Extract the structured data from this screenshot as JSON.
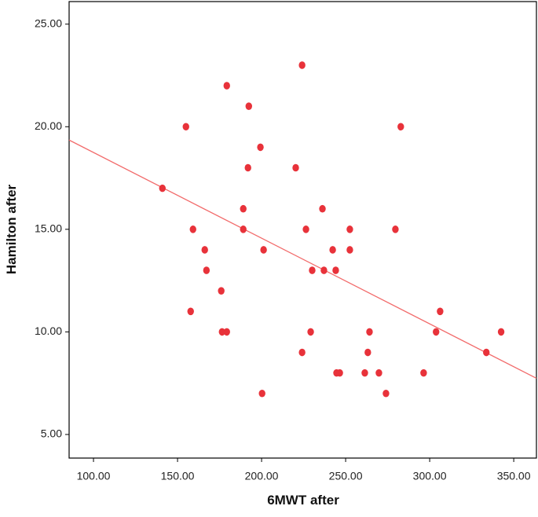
{
  "chart_data": {
    "type": "scatter",
    "x_label": "6MWT after",
    "y_label": "Hamilton after",
    "color": "#e8323a",
    "x": [
      141.0,
      155.0,
      179.3,
      192.4,
      224.1,
      282.8,
      199.3,
      191.9,
      220.3,
      189.1,
      236.2,
      159.2,
      189.1,
      226.4,
      252.5,
      279.6,
      166.2,
      201.2,
      242.3,
      252.5,
      167.2,
      230.1,
      237.1,
      244.1,
      176.0,
      157.8,
      306.2,
      176.5,
      179.3,
      229.2,
      264.2,
      303.8,
      342.5,
      224.1,
      263.2,
      333.7,
      244.6,
      246.5,
      261.4,
      269.8,
      296.4,
      200.3,
      274.0
    ],
    "values": [
      17,
      20,
      22,
      21,
      23,
      20,
      19,
      18,
      18,
      16,
      16,
      15,
      15,
      15,
      15,
      15,
      14,
      14,
      14,
      14,
      13,
      13,
      13,
      13,
      12,
      11,
      11,
      10,
      10,
      10,
      10,
      10,
      10,
      9,
      9,
      9,
      8,
      8,
      8,
      8,
      8,
      7,
      7
    ],
    "fit": {
      "x": [
        85.5,
        363.5
      ],
      "y": [
        19.35,
        7.74
      ],
      "color": "#f26b6b"
    },
    "xlim": [
      85.5,
      363.5
    ],
    "ylim": [
      3.85,
      26.1
    ],
    "xticks": [
      {
        "value": 100,
        "label": "100.00"
      },
      {
        "value": 150,
        "label": "150.00"
      },
      {
        "value": 200,
        "label": "200.00"
      },
      {
        "value": 250,
        "label": "250.00"
      },
      {
        "value": 300,
        "label": "300.00"
      },
      {
        "value": 350,
        "label": "350.00"
      }
    ],
    "yticks": [
      {
        "value": 5,
        "label": "5.00"
      },
      {
        "value": 10,
        "label": "10.00"
      },
      {
        "value": 15,
        "label": "15.00"
      },
      {
        "value": 20,
        "label": "20.00"
      },
      {
        "value": 25,
        "label": "25.00"
      }
    ]
  }
}
